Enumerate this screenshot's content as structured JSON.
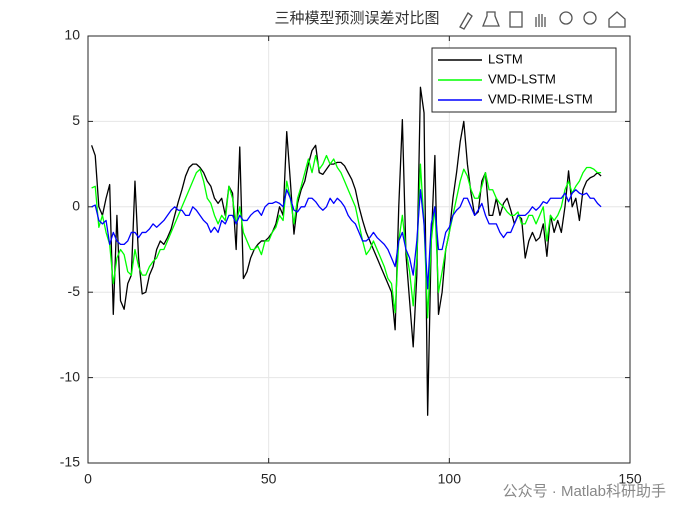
{
  "chart_data": {
    "type": "line",
    "title": "三种模型预测误差对比图",
    "x": [
      1,
      2,
      3,
      4,
      5,
      6,
      7,
      8,
      9,
      10,
      11,
      12,
      13,
      14,
      15,
      16,
      17,
      18,
      19,
      20,
      21,
      22,
      23,
      24,
      25,
      26,
      27,
      28,
      29,
      30,
      31,
      32,
      33,
      34,
      35,
      36,
      37,
      38,
      39,
      40,
      41,
      42,
      43,
      44,
      45,
      46,
      47,
      48,
      49,
      50,
      51,
      52,
      53,
      54,
      55,
      56,
      57,
      58,
      59,
      60,
      61,
      62,
      63,
      64,
      65,
      66,
      67,
      68,
      69,
      70,
      71,
      72,
      73,
      74,
      75,
      76,
      77,
      78,
      79,
      80,
      81,
      82,
      83,
      84,
      85,
      86,
      87,
      88,
      89,
      90,
      91,
      92,
      93,
      94,
      95,
      96,
      97,
      98,
      99,
      100,
      101,
      102,
      103,
      104,
      105,
      106,
      107,
      108,
      109,
      110,
      111,
      112,
      113,
      114,
      115,
      116,
      117,
      118,
      119,
      120,
      121,
      122,
      123,
      124,
      125,
      126,
      127,
      128,
      129,
      130,
      131,
      132,
      133,
      134,
      135,
      136,
      137,
      138,
      139,
      140,
      141,
      142
    ],
    "series": [
      {
        "name": "LSTM",
        "color": "#000000",
        "values": [
          3.6,
          3.0,
          0,
          -0.5,
          0.5,
          1.3,
          -6.3,
          -0.5,
          -5.5,
          -6,
          -4.5,
          -4.0,
          1.5,
          -3,
          -5.1,
          -5,
          -4,
          -3.5,
          -2.5,
          -2,
          -2.2,
          -1.8,
          -1.3,
          -0.5,
          0.3,
          1,
          1.8,
          2.3,
          2.5,
          2.5,
          2.3,
          2,
          1.5,
          1.2,
          0.5,
          0.2,
          0.5,
          -0.5,
          1.2,
          0.8,
          -2.5,
          3.5,
          -4.2,
          -3.8,
          -3,
          -2.5,
          -2.2,
          -2,
          -2,
          -1.8,
          -1.5,
          -1,
          0,
          -0.5,
          4.4,
          1.5,
          -1.6,
          0.2,
          1,
          1.5,
          2.5,
          3.3,
          3.6,
          2,
          1.9,
          2.2,
          2.5,
          2.5,
          2.6,
          2.6,
          2.4,
          2.0,
          1.6,
          1,
          0,
          -0.8,
          -1.5,
          -2,
          -2.5,
          -3,
          -3.5,
          -4,
          -4.5,
          -5,
          -7.2,
          0,
          5.1,
          -2.8,
          -5.5,
          -8.2,
          -4,
          7,
          5.5,
          -12.2,
          -2,
          3,
          -6.3,
          -5,
          -2.5,
          -1.5,
          0.5,
          2,
          3.8,
          5,
          2.5,
          0.8,
          -0.5,
          -0.3,
          1.5,
          2,
          -0.5,
          -0.5,
          0.5,
          -0.5,
          0.2,
          0.5,
          -0.2,
          -1,
          -0.5,
          -0.7,
          -3,
          -2,
          -1.5,
          -2,
          -1.8,
          -1,
          -2.9,
          -0.5,
          -1.5,
          -0.8,
          -1.5,
          0,
          2.1,
          0,
          0.5,
          -0.8,
          1,
          1.5,
          1.7,
          1.8,
          2,
          1.8
        ]
      },
      {
        "name": "VMD-LSTM",
        "color": "#00ff00",
        "values": [
          1.1,
          1.2,
          -1.2,
          -0.5,
          -1.5,
          -2.2,
          -4.5,
          -3,
          -2.5,
          -2.8,
          -3.8,
          -4,
          -2.5,
          -3.5,
          -4,
          -4,
          -3.5,
          -3.2,
          -3,
          -2.5,
          -2.5,
          -2,
          -1.5,
          -1,
          -0.5,
          0,
          0.5,
          1,
          1.5,
          2,
          2.2,
          1.5,
          0.5,
          0.2,
          -0.5,
          -1,
          -0.5,
          -0.8,
          1.2,
          0.5,
          -1,
          0,
          -1.5,
          -2,
          -2.5,
          -2.5,
          -2.3,
          -2.8,
          -2,
          -2,
          -1.5,
          -1.2,
          -0.5,
          -0.8,
          1.5,
          0.5,
          -1,
          0.5,
          1.2,
          2,
          2.8,
          2,
          3,
          2.2,
          2.5,
          3,
          2.5,
          2.8,
          2.3,
          2,
          1.5,
          1,
          0.5,
          0,
          -1,
          -2,
          -2.8,
          -2.5,
          -2,
          -2.5,
          -3,
          -3.5,
          -4.2,
          -4.5,
          -6.2,
          -2,
          -0.5,
          -2.5,
          -3.8,
          -5.8,
          -3,
          2.5,
          -1,
          -6.5,
          -2,
          0,
          -5,
          -3.8,
          -2.5,
          -1.5,
          -0.5,
          0.5,
          1.5,
          2.2,
          1.8,
          1,
          0.5,
          0.5,
          1.2,
          2,
          1,
          1,
          0.5,
          0.2,
          0,
          -0.3,
          -0.5,
          -0.5,
          -0.3,
          -1,
          -1,
          -0.5,
          -0.5,
          -1,
          -0.5,
          0,
          -2,
          -0.5,
          -0.8,
          -0.5,
          0,
          1,
          1.5,
          0.8,
          1.2,
          1.5,
          2,
          2.3,
          2.3,
          2.2,
          2,
          2
        ]
      },
      {
        "name": "VMD-RIME-LSTM",
        "color": "#0000ff",
        "values": [
          0,
          0.1,
          -0.8,
          -1,
          -0.8,
          -2.2,
          -1.5,
          -2,
          -2.2,
          -2.2,
          -2,
          -1.5,
          -1.5,
          -1.8,
          -1.5,
          -1.5,
          -1.3,
          -1,
          -1.2,
          -1,
          -0.8,
          -0.5,
          -0.2,
          0,
          -0.2,
          -0.2,
          -0.5,
          -0.5,
          0,
          -0.2,
          -0.5,
          -0.8,
          -1,
          -1.5,
          -1.2,
          -1.5,
          -0.8,
          -1,
          -0.5,
          -0.5,
          -1,
          -0.5,
          -0.8,
          -0.8,
          -0.5,
          -0.3,
          -0.2,
          -0.5,
          0,
          0.2,
          0.2,
          0.3,
          0.2,
          0,
          1,
          0.5,
          -0.2,
          -0.3,
          0,
          0,
          0.5,
          0.5,
          0.3,
          0,
          -0.2,
          0,
          0.5,
          0.2,
          0.5,
          0.3,
          0,
          -0.5,
          -0.8,
          -1,
          -1.5,
          -2,
          -2,
          -1.8,
          -1.5,
          -1.8,
          -2,
          -2.2,
          -2.5,
          -3,
          -3.5,
          -2,
          -1.5,
          -2.5,
          -3,
          -4,
          -2,
          1,
          -1,
          -4.8,
          -1,
          0,
          -2.5,
          -2.5,
          -1.5,
          -1.2,
          -0.5,
          -0.2,
          0,
          0.5,
          0.5,
          0,
          -0.5,
          -0.2,
          0.2,
          -0.5,
          -1,
          -1,
          -1,
          -1.5,
          -1.8,
          -1.5,
          -1.5,
          -1,
          -0.5,
          -0.5,
          -0.5,
          -0.3,
          0,
          -0.2,
          0,
          0.3,
          0.2,
          0.5,
          0.5,
          0.5,
          0.5,
          0.8,
          0.3,
          0.8,
          1,
          0.8,
          0.7,
          0.8,
          0.5,
          0.5,
          0.2,
          0
        ]
      }
    ],
    "xlim": [
      0,
      150
    ],
    "ylim": [
      -15,
      10
    ],
    "xticks": [
      0,
      50,
      100,
      150
    ],
    "yticks": [
      -15,
      -10,
      -5,
      0,
      5,
      10
    ],
    "grid": true,
    "legend": "northeast"
  },
  "watermark": "公众号 · Matlab科研助手"
}
